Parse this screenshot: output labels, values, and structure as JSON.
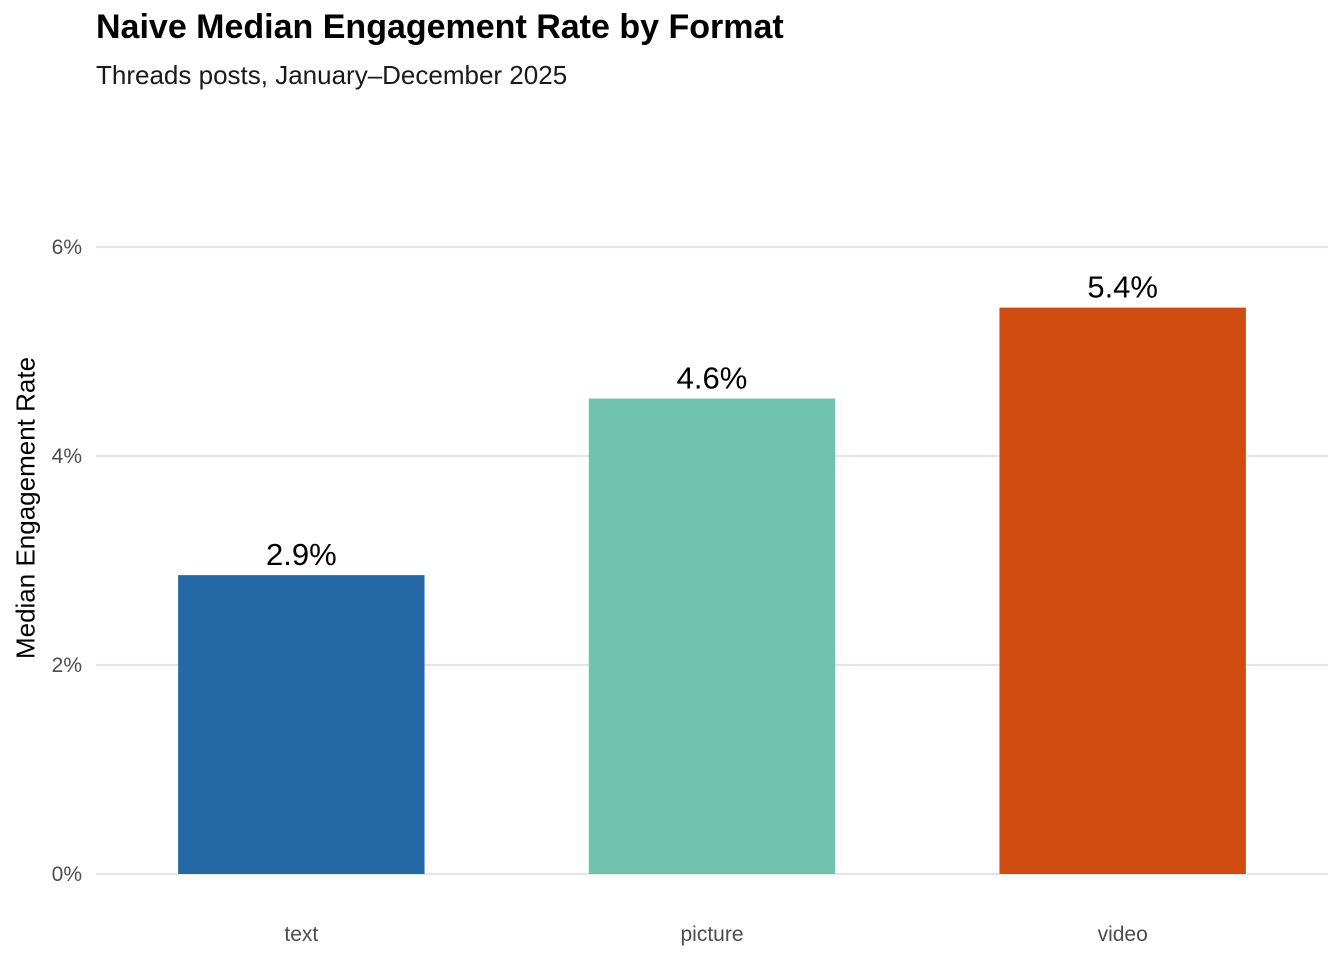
{
  "chart_data": {
    "type": "bar",
    "title": "Naive Median Engagement Rate by Format",
    "subtitle": "Threads posts, January–December 2025",
    "xlabel": "",
    "ylabel": "Median Engagement Rate",
    "categories": [
      "text",
      "picture",
      "video"
    ],
    "values": [
      2.86,
      4.55,
      5.42
    ],
    "data_labels": [
      "2.9%",
      "4.6%",
      "5.4%"
    ],
    "colors": [
      "#2469a6",
      "#70c4ad",
      "#cf4b0f"
    ],
    "ylim": [
      0,
      6.5
    ],
    "yticks": [
      0,
      2,
      4,
      6
    ],
    "ytick_labels": [
      "0%",
      "2%",
      "4%",
      "6%"
    ],
    "grid": "horizontal major",
    "legend": "none"
  }
}
